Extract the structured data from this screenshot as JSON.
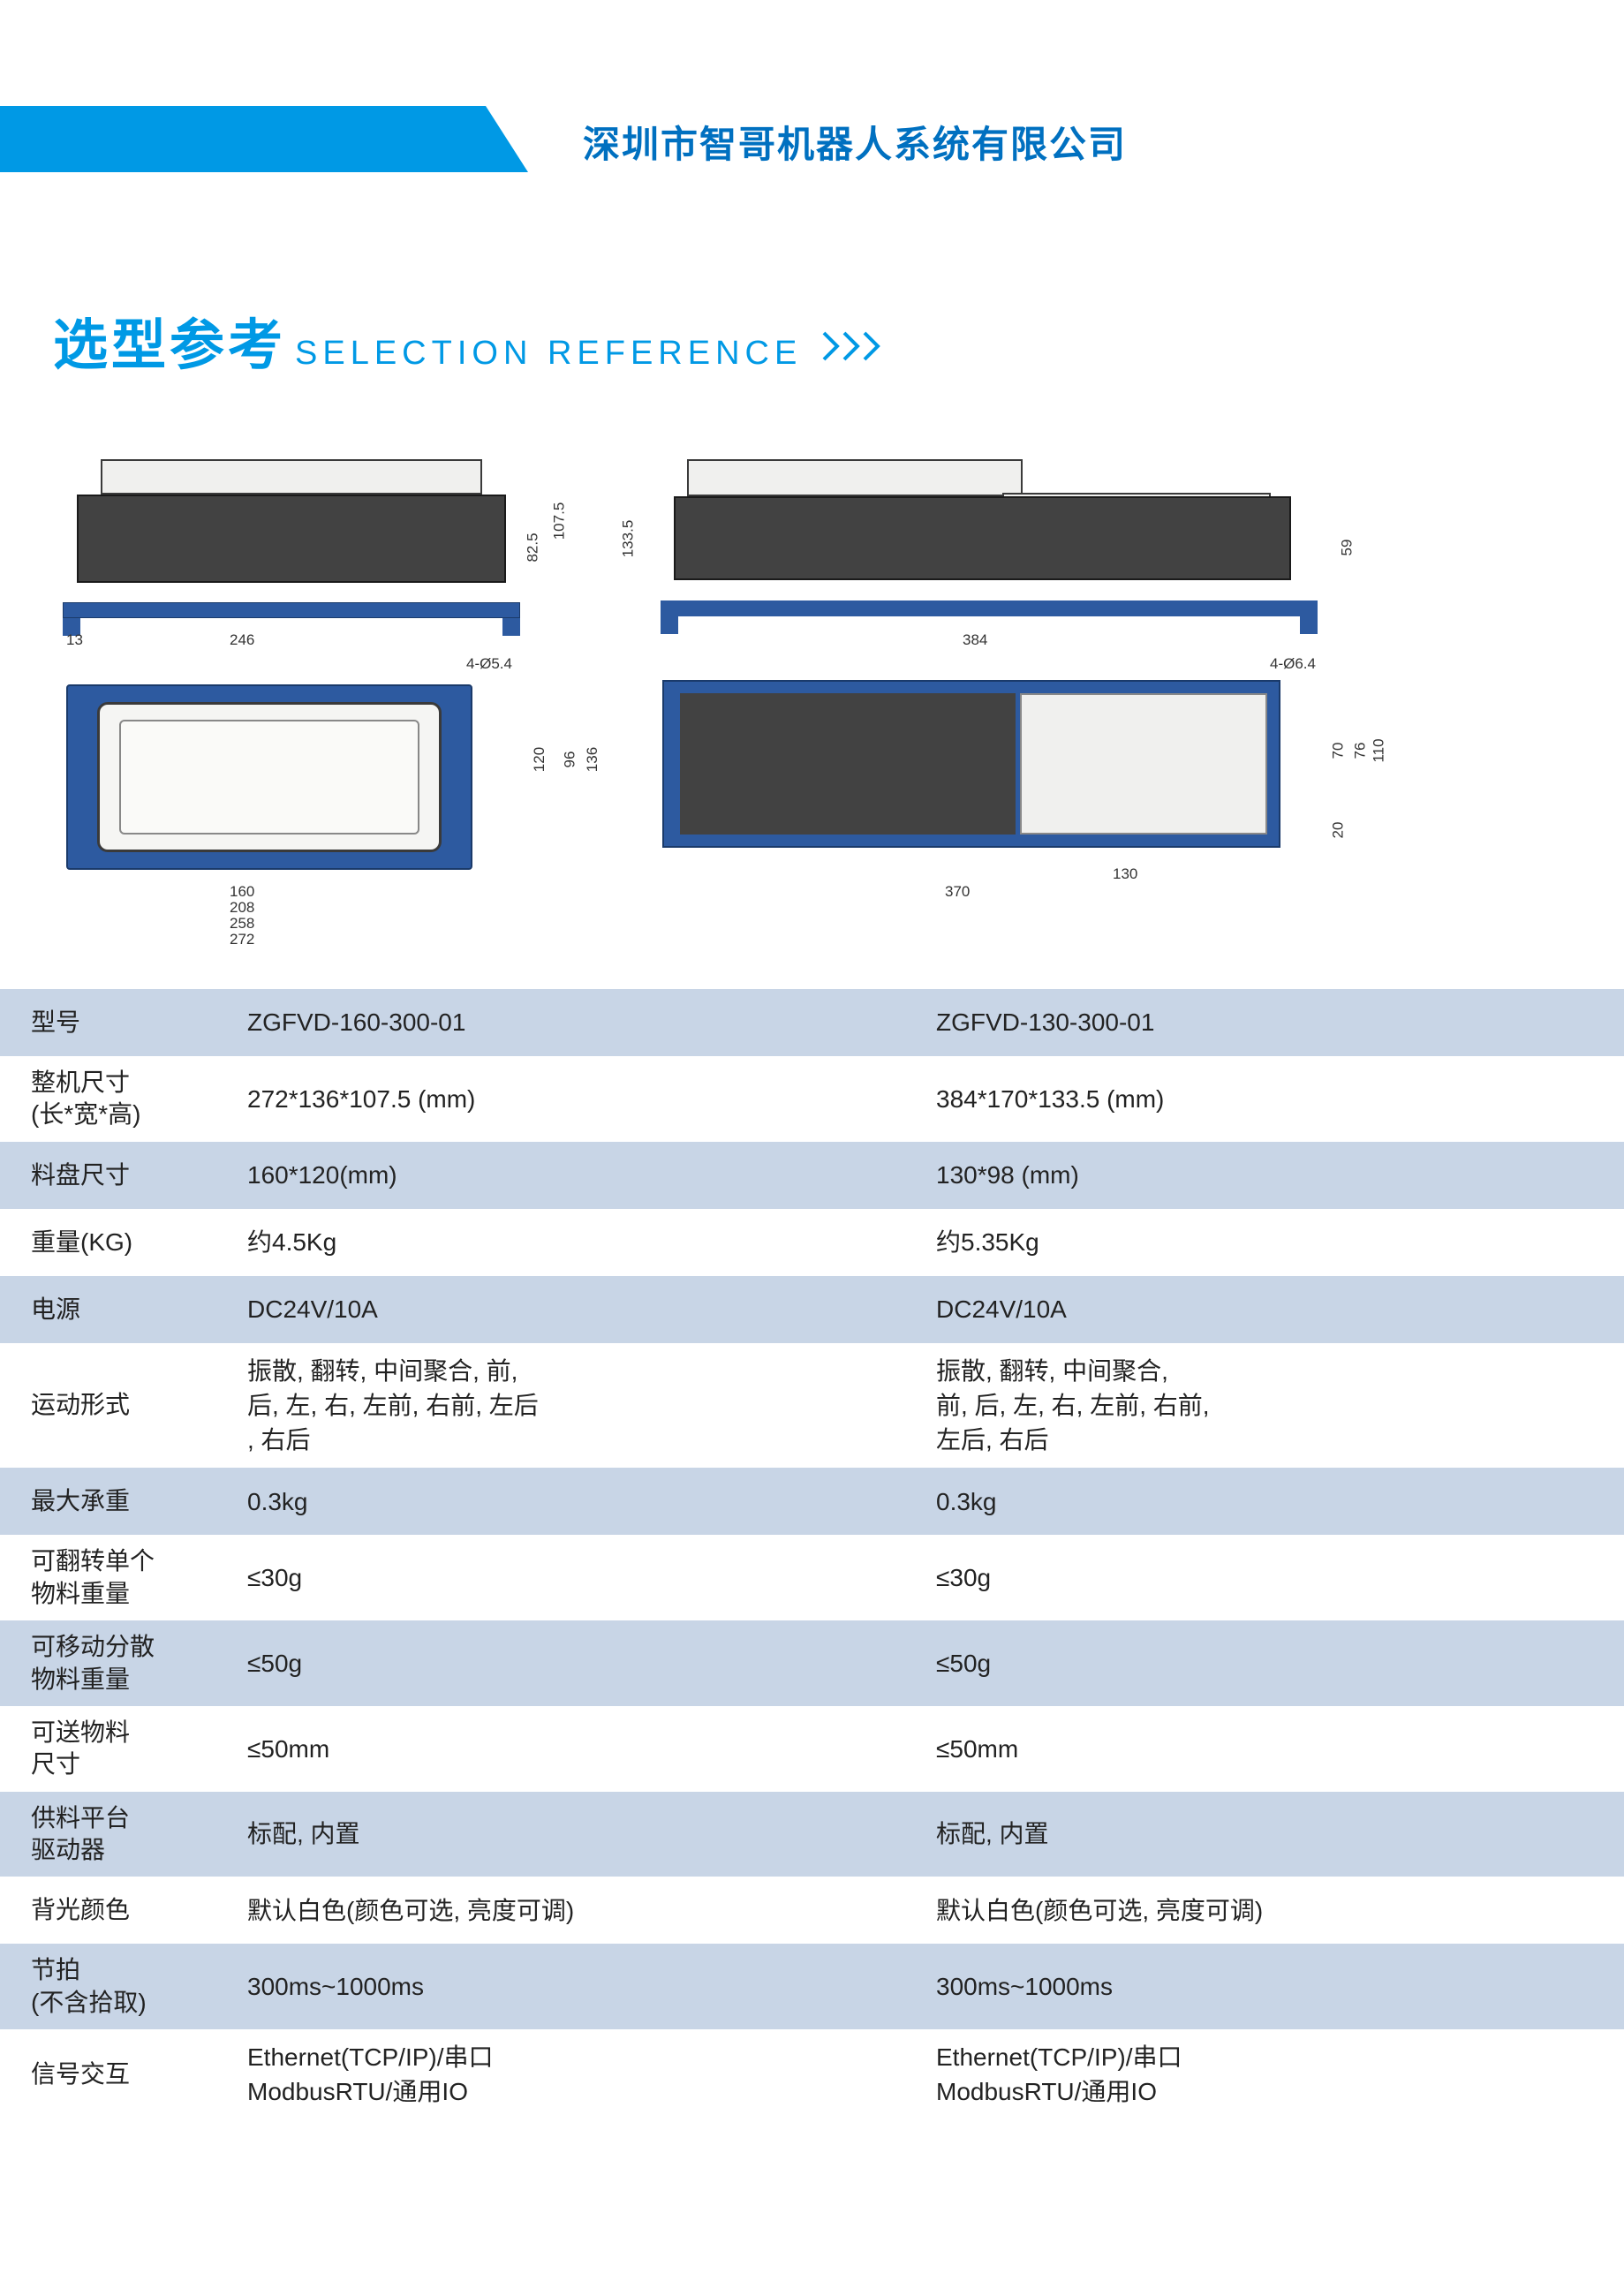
{
  "header": {
    "company_name": "深圳市智哥机器人系统有限公司",
    "bar_color": "#0099e5"
  },
  "section": {
    "title_cn": "选型参考",
    "title_en": "SELECTION REFERENCE",
    "title_color": "#0099e5",
    "title_cn_fontsize": 62,
    "title_en_fontsize": 38
  },
  "diagrams": {
    "model1": {
      "side_dims": {
        "width": "246",
        "left_margin": "13",
        "height_total": "107.5",
        "height_body": "82.5"
      },
      "top_dims": {
        "w1": "160",
        "w2": "208",
        "w3": "258",
        "w4": "272",
        "h_inner": "120",
        "h_mid": "96",
        "h_outer": "136",
        "bolt": "4-Ø5.4"
      }
    },
    "model2": {
      "side_dims": {
        "width": "384",
        "height_total": "133.5",
        "height_step": "59"
      },
      "top_dims": {
        "w_total": "370",
        "w_inner": "130",
        "h1": "70",
        "h2": "76",
        "h3": "110",
        "h_small": "20",
        "bolt": "4-Ø6.4"
      }
    },
    "colors": {
      "frame_blue": "#2d5aa0",
      "body_dark": "#424242",
      "plate_light": "#f0f0ee"
    }
  },
  "spec_table": {
    "row_bg_alt": "#c8d5e6",
    "label_fontsize": 28,
    "value_fontsize": 28,
    "rows": [
      {
        "label": "型号",
        "v1": "ZGFVD-160-300-01",
        "v2": "ZGFVD-130-300-01",
        "alt": true
      },
      {
        "label": "整机尺寸\n(长*宽*高)",
        "v1": "272*136*107.5 (mm)",
        "v2": "384*170*133.5 (mm)",
        "alt": false
      },
      {
        "label": "料盘尺寸",
        "v1": "160*120(mm)",
        "v2": "130*98 (mm)",
        "alt": true
      },
      {
        "label": "重量(KG)",
        "v1": "约4.5Kg",
        "v2": "约5.35Kg",
        "alt": false
      },
      {
        "label": "电源",
        "v1": "DC24V/10A",
        "v2": "DC24V/10A",
        "alt": true
      },
      {
        "label": "运动形式",
        "v1": "振散, 翻转, 中间聚合, 前,\n后, 左, 右, 左前, 右前, 左后\n, 右后",
        "v2": "振散, 翻转, 中间聚合,\n前, 后, 左, 右, 左前, 右前,\n左后, 右后",
        "alt": false
      },
      {
        "label": "最大承重",
        "v1": "0.3kg",
        "v2": "0.3kg",
        "alt": true
      },
      {
        "label": "可翻转单个\n物料重量",
        "v1": "≤30g",
        "v2": "≤30g",
        "alt": false
      },
      {
        "label": "可移动分散\n物料重量",
        "v1": "≤50g",
        "v2": "≤50g",
        "alt": true
      },
      {
        "label": "可送物料\n尺寸",
        "v1": "≤50mm",
        "v2": "≤50mm",
        "alt": false
      },
      {
        "label": "供料平台\n驱动器",
        "v1": "标配, 内置",
        "v2": "标配, 内置",
        "alt": true
      },
      {
        "label": "背光颜色",
        "v1": "默认白色(颜色可选, 亮度可调)",
        "v2": "默认白色(颜色可选, 亮度可调)",
        "alt": false
      },
      {
        "label": "节拍\n(不含拾取)",
        "v1": "300ms~1000ms",
        "v2": "300ms~1000ms",
        "alt": true
      },
      {
        "label": "信号交互",
        "v1": "Ethernet(TCP/IP)/串口\nModbusRTU/通用IO",
        "v2": "Ethernet(TCP/IP)/串口\nModbusRTU/通用IO",
        "alt": false
      }
    ]
  }
}
